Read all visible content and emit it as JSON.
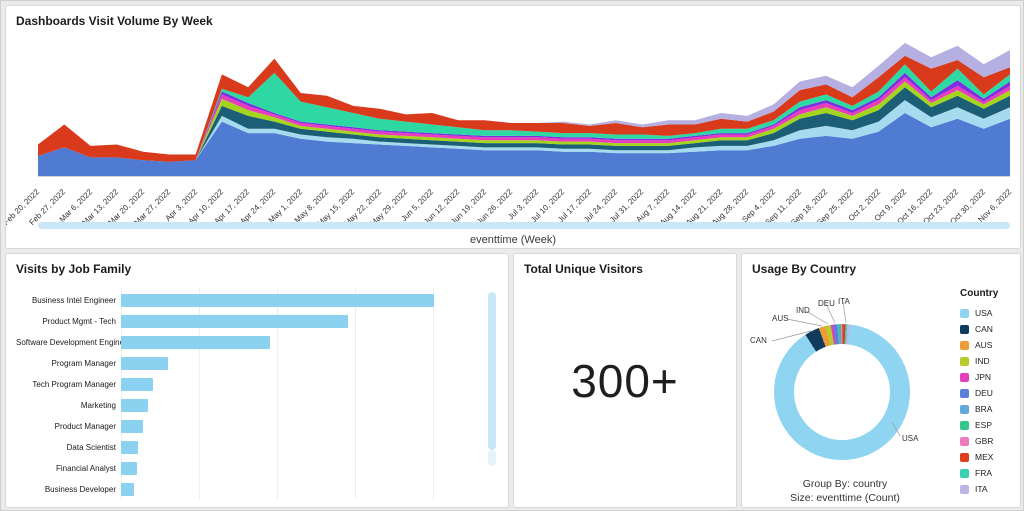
{
  "panels": {
    "visit_volume": {
      "title": "Dashboards Visit Volume By Week",
      "x_axis_title": "eventtime (Week)"
    },
    "job_family": {
      "title": "Visits by Job Family"
    },
    "unique_visitors": {
      "title": "Total Unique Visitors",
      "value": "300+"
    },
    "usage_by_country": {
      "title": "Usage By Country",
      "legend_title": "Country",
      "group_by": "Group By: country",
      "size_by": "Size: eventtime (Count)"
    }
  },
  "chart_data": [
    {
      "type": "area",
      "stacked": true,
      "title": "Dashboards Visit Volume By Week",
      "xlabel": "eventtime (Week)",
      "ylabel": "",
      "ylim": [
        0,
        95
      ],
      "grid": false,
      "legend_position": "none",
      "categories": [
        "Feb 20, 2022",
        "Feb 27, 2022",
        "Mar 6, 2022",
        "Mar 13, 2022",
        "Mar 20, 2022",
        "Mar 27, 2022",
        "Apr 3, 2022",
        "Apr 10, 2022",
        "Apr 17, 2022",
        "Apr 24, 2022",
        "May 1, 2022",
        "May 8, 2022",
        "May 15, 2022",
        "May 22, 2022",
        "May 29, 2022",
        "Jun 5, 2022",
        "Jun 12, 2022",
        "Jun 19, 2022",
        "Jun 26, 2022",
        "Jul 3, 2022",
        "Jul 10, 2022",
        "Jul 17, 2022",
        "Jul 24, 2022",
        "Jul 31, 2022",
        "Aug 7, 2022",
        "Aug 14, 2022",
        "Aug 21, 2022",
        "Aug 28, 2022",
        "Sep 4, 2022",
        "Sep 11, 2022",
        "Sep 18, 2022",
        "Sep 25, 2022",
        "Oct 2, 2022",
        "Oct 9, 2022",
        "Oct 16, 2022",
        "Oct 23, 2022",
        "Oct 30, 2022",
        "Nov 6, 2022"
      ],
      "series": [
        {
          "name": "series 1 blue",
          "color": "#4F7BD3",
          "values": [
            14,
            20,
            13,
            13,
            11,
            10,
            11,
            38,
            30,
            30,
            26,
            24,
            23,
            22,
            21,
            20,
            19,
            18,
            18,
            18,
            17,
            17,
            16,
            16,
            16,
            17,
            18,
            18,
            21,
            26,
            28,
            26,
            31,
            44,
            34,
            40,
            33,
            40
          ]
        },
        {
          "name": "series 2 light cyan",
          "color": "#A6DBEF",
          "values": [
            0,
            0,
            0,
            0,
            0,
            0,
            0,
            4,
            3,
            3,
            3,
            3,
            3,
            2,
            2,
            2,
            2,
            2,
            2,
            2,
            2,
            2,
            2,
            2,
            2,
            3,
            3,
            3,
            4,
            6,
            7,
            6,
            7,
            9,
            7,
            8,
            7,
            8
          ]
        },
        {
          "name": "series 3 dark teal",
          "color": "#1D5E77",
          "values": [
            0,
            0,
            0,
            0,
            0,
            0,
            0,
            7,
            9,
            5,
            4,
            4,
            3,
            3,
            3,
            3,
            3,
            3,
            3,
            3,
            3,
            3,
            3,
            3,
            3,
            3,
            4,
            4,
            5,
            8,
            9,
            7,
            8,
            9,
            7,
            8,
            7,
            8
          ]
        },
        {
          "name": "series 4 yellow green",
          "color": "#A4D51C",
          "values": [
            0,
            0,
            0,
            0,
            0,
            0,
            0,
            5,
            4,
            3,
            2,
            2,
            2,
            2,
            2,
            2,
            2,
            2,
            2,
            2,
            2,
            2,
            2,
            2,
            2,
            2,
            2,
            2,
            3,
            3,
            4,
            3,
            4,
            4,
            3,
            4,
            3,
            4
          ]
        },
        {
          "name": "series 5 magenta",
          "color": "#E93DBE",
          "values": [
            0,
            0,
            0,
            0,
            0,
            0,
            0,
            3,
            3,
            2,
            2,
            2,
            2,
            2,
            2,
            2,
            2,
            2,
            2,
            2,
            2,
            2,
            2,
            2,
            2,
            2,
            2,
            2,
            2,
            3,
            3,
            2,
            3,
            3,
            2,
            3,
            2,
            3
          ]
        },
        {
          "name": "series 6 purple",
          "color": "#7B2FE0",
          "values": [
            0,
            0,
            0,
            0,
            0,
            0,
            0,
            2,
            2,
            1,
            1,
            1,
            1,
            1,
            1,
            1,
            1,
            1,
            1,
            1,
            1,
            1,
            1,
            1,
            1,
            1,
            1,
            1,
            1,
            2,
            2,
            2,
            2,
            3,
            2,
            4,
            2,
            3
          ]
        },
        {
          "name": "series 7 mint",
          "color": "#2ED8A3",
          "values": [
            0,
            0,
            0,
            0,
            0,
            0,
            0,
            2,
            4,
            28,
            14,
            12,
            10,
            8,
            7,
            6,
            5,
            4,
            4,
            3,
            3,
            3,
            3,
            3,
            2,
            2,
            3,
            3,
            3,
            4,
            4,
            3,
            4,
            6,
            4,
            8,
            3,
            5
          ]
        },
        {
          "name": "series 8 red",
          "color": "#D83A1B",
          "values": [
            8,
            16,
            8,
            9,
            6,
            5,
            4,
            10,
            7,
            10,
            6,
            8,
            5,
            7,
            5,
            8,
            5,
            7,
            5,
            6,
            7,
            5,
            8,
            5,
            8,
            6,
            7,
            5,
            6,
            8,
            7,
            6,
            10,
            6,
            16,
            6,
            12,
            5
          ]
        },
        {
          "name": "series 9 lavender",
          "color": "#B6B0E2",
          "values": [
            0,
            0,
            0,
            0,
            0,
            0,
            0,
            0,
            0,
            0,
            0,
            0,
            0,
            0,
            0,
            0,
            0,
            0,
            0,
            0,
            1,
            1,
            2,
            2,
            3,
            3,
            4,
            4,
            5,
            6,
            6,
            7,
            8,
            9,
            8,
            10,
            9,
            12
          ]
        }
      ]
    },
    {
      "type": "bar",
      "orientation": "horizontal",
      "title": "Visits by Job Family",
      "bar_color": "#8AD2EF",
      "categories": [
        "Business Intel Engineer",
        "Product Mgmt - Tech",
        "Software Development Engineer",
        "Program Manager",
        "Tech Program Manager",
        "Marketing",
        "Product Manager",
        "Data Scientist",
        "Financial Analyst",
        "Business Developer"
      ],
      "values": [
        320,
        232,
        152,
        48,
        33,
        28,
        22,
        17,
        16,
        13
      ]
    },
    {
      "type": "pie",
      "donut": true,
      "title": "Usage By Country",
      "legend_position": "right",
      "callouts": [
        "CAN",
        "AUS",
        "IND",
        "DEU",
        "ITA",
        "USA"
      ],
      "slices": [
        {
          "code": "USA",
          "color": "#8FD4F0",
          "value": 89.0
        },
        {
          "code": "CAN",
          "color": "#0F3B5C",
          "value": 3.5
        },
        {
          "code": "AUS",
          "color": "#EE9B3A",
          "value": 1.6
        },
        {
          "code": "IND",
          "color": "#B8CC2E",
          "value": 1.3
        },
        {
          "code": "JPN",
          "color": "#E340BC",
          "value": 0.6
        },
        {
          "code": "DEU",
          "color": "#5C7FD9",
          "value": 0.9
        },
        {
          "code": "BRA",
          "color": "#63A9DE",
          "value": 0.4
        },
        {
          "code": "ESP",
          "color": "#36C78D",
          "value": 0.5
        },
        {
          "code": "GBR",
          "color": "#EF7BBF",
          "value": 0.4
        },
        {
          "code": "MEX",
          "color": "#DF3E1C",
          "value": 0.7
        },
        {
          "code": "FRA",
          "color": "#3CCFB0",
          "value": 0.4
        },
        {
          "code": "ITA",
          "color": "#BDB5E4",
          "value": 0.7
        }
      ]
    }
  ]
}
